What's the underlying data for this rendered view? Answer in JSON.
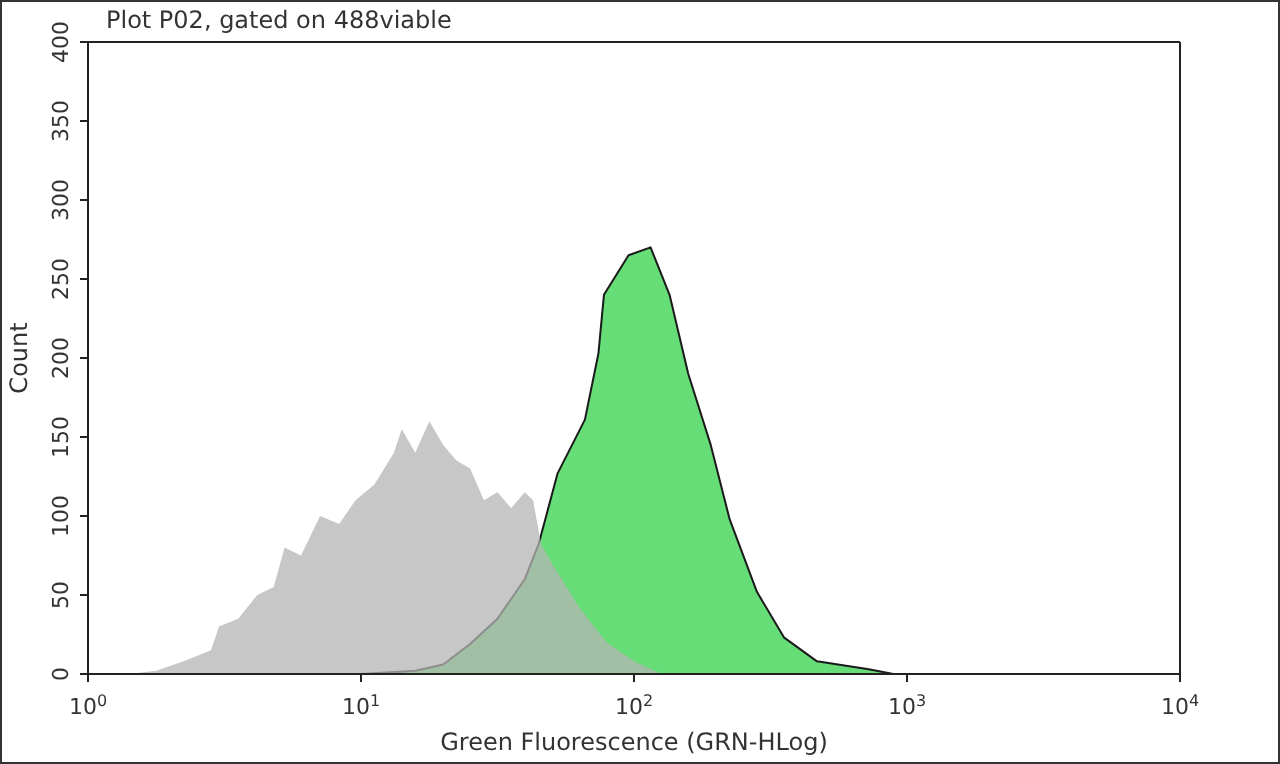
{
  "chart_data": {
    "type": "area",
    "title": "Plot P02, gated on 488viable",
    "xlabel": "Green Fluorescence (GRN-HLog)",
    "ylabel": "Count",
    "log": "x",
    "xlim": [
      1,
      10000
    ],
    "xticks": [
      {
        "value": 1,
        "label": "10$^{0}$"
      },
      {
        "value": 10,
        "label": "10$^{1}$"
      },
      {
        "value": 100,
        "label": "10$^{2}$"
      },
      {
        "value": 1000,
        "label": "10$^{3}$"
      },
      {
        "value": 10000,
        "label": "10$^{4}$"
      }
    ],
    "ylim": [
      0,
      400
    ],
    "yticks": [
      0,
      50,
      100,
      150,
      200,
      250,
      300,
      350,
      400
    ],
    "series": [
      {
        "color": "#66dd77",
        "x": [
          10,
          15.8,
          20,
          25.1,
          31.6,
          39.8,
          44.7,
          52.5,
          66.1,
          74.1,
          77.6,
          95.5,
          115,
          135,
          158,
          191,
          224,
          282,
          355,
          468,
          724,
          891
        ],
        "values": [
          0,
          2,
          6,
          19,
          35,
          60,
          82,
          127,
          161,
          203,
          240,
          265,
          270,
          240,
          190,
          145,
          98,
          52,
          23,
          8,
          3,
          0
        ]
      },
      {
        "color": "#b4b4b4",
        "x": [
          1,
          1.41,
          1.78,
          2.24,
          2.82,
          3.02,
          3.55,
          4.17,
          4.79,
          5.25,
          6.03,
          7.08,
          8.32,
          9.55,
          11.2,
          13.2,
          14.1,
          15.8,
          17.8,
          20,
          22.4,
          25.1,
          28.2,
          31.6,
          35.5,
          39.8,
          42.7,
          45.7,
          50.1,
          63.1,
          79.4,
          100,
          126
        ],
        "values": [
          0,
          0,
          2,
          8,
          15,
          30,
          35,
          50,
          55,
          80,
          75,
          100,
          95,
          110,
          120,
          140,
          155,
          140,
          160,
          145,
          135,
          130,
          110,
          115,
          105,
          115,
          110,
          82,
          70,
          42,
          20,
          8,
          0
        ]
      }
    ]
  }
}
